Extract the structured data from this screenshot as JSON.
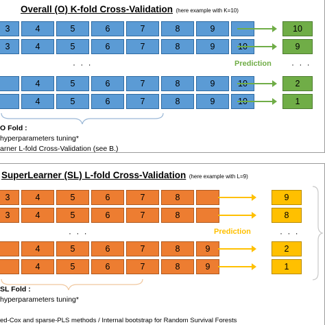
{
  "top": {
    "title": "Overall (O) K-fold Cross-Validation",
    "subtitle": "(here example with K=10)",
    "rows": [
      [
        "3",
        "4",
        "5",
        "6",
        "7",
        "8",
        "9"
      ],
      [
        "3",
        "4",
        "5",
        "6",
        "7",
        "8",
        "9",
        "10"
      ],
      [
        "4",
        "5",
        "6",
        "7",
        "8",
        "9",
        "10"
      ],
      [
        "4",
        "5",
        "6",
        "7",
        "8",
        "9",
        "10"
      ]
    ],
    "dots": "· · ·",
    "predictions": [
      "10",
      "9",
      "2",
      "1"
    ],
    "pred_dots": "· · ·",
    "prediction_label": "Prediction",
    "notes": [
      "O Fold :",
      "hyperparameters tuning*",
      "arner L-fold Cross-Validation (see B.)"
    ]
  },
  "bottom": {
    "title": "SuperLearner (SL) L-fold Cross-Validation",
    "subtitle": "(here example with L=9)",
    "rows": [
      [
        "3",
        "4",
        "5",
        "6",
        "7",
        "8"
      ],
      [
        "3",
        "4",
        "5",
        "6",
        "7",
        "8"
      ],
      [
        "4",
        "5",
        "6",
        "7",
        "8",
        "9"
      ],
      [
        "4",
        "5",
        "6",
        "7",
        "8",
        "9"
      ]
    ],
    "dots": "· · ·",
    "predictions": [
      "9",
      "8",
      "2",
      "1"
    ],
    "pred_dots": "· · ·",
    "prediction_label": "Prediction",
    "notes": [
      "SL Fold :",
      "hyperparameters tuning*"
    ]
  },
  "footer": "ed-Cox and sparse-PLS methods / Internal bootstrap for Random Survival Forests",
  "colors": {
    "blue": "#5b9bd5",
    "orange": "#ed7d31",
    "green": "#70ad47",
    "yellow": "#ffc000"
  }
}
